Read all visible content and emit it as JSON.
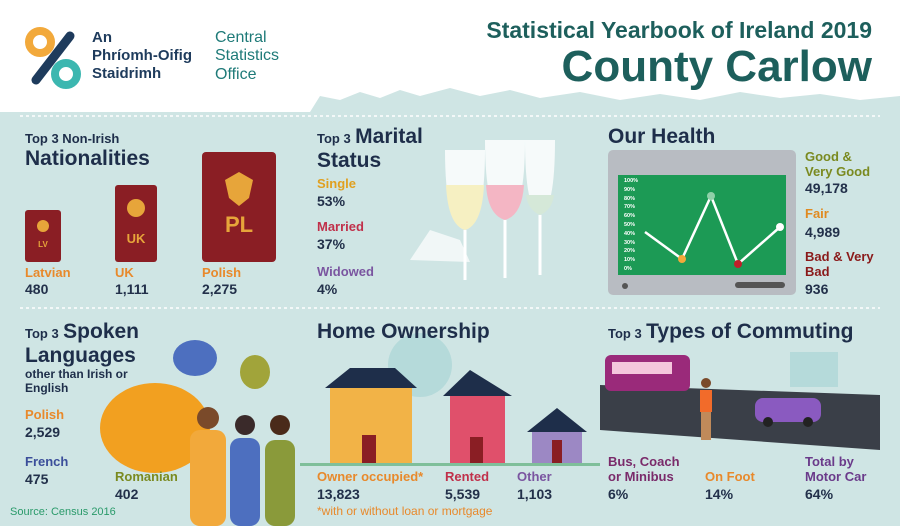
{
  "header": {
    "logo_irish": [
      "An",
      "Phríomh-Oifig",
      "Staidrimh"
    ],
    "logo_english": [
      "Central",
      "Statistics",
      "Office"
    ],
    "title": "Statistical Yearbook of Ireland 2019",
    "subtitle": "County Carlow"
  },
  "nationalities": {
    "kicker": "Top 3 Non-Irish",
    "heading": "Nationalities",
    "items": [
      {
        "code": "LV",
        "name": "Latvian",
        "value": "480"
      },
      {
        "code": "UK",
        "name": "UK",
        "value": "1,111"
      },
      {
        "code": "PL",
        "name": "Polish",
        "value": "2,275"
      }
    ]
  },
  "marital": {
    "kicker": "Top 3",
    "heading": "Marital Status",
    "items": [
      {
        "name": "Single",
        "value": "53%"
      },
      {
        "name": "Married",
        "value": "37%"
      },
      {
        "name": "Widowed",
        "value": "4%"
      }
    ]
  },
  "health": {
    "heading": "Our Health",
    "screen_ticks": [
      "100%",
      "90%",
      "80%",
      "70%",
      "60%",
      "50%",
      "40%",
      "30%",
      "20%",
      "10%",
      "0%"
    ],
    "items": [
      {
        "name": "Good & Very Good",
        "value": "49,178"
      },
      {
        "name": "Fair",
        "value": "4,989"
      },
      {
        "name": "Bad & Very Bad",
        "value": "936"
      }
    ]
  },
  "languages": {
    "kicker": "Top 3",
    "heading": "Spoken Languages",
    "note": "other than Irish or English",
    "items": [
      {
        "name": "Polish",
        "value": "2,529"
      },
      {
        "name": "French",
        "value": "475"
      },
      {
        "name": "Romanian",
        "value": "402"
      }
    ]
  },
  "home": {
    "heading": "Home Ownership",
    "items": [
      {
        "name": "Owner occupied*",
        "value": "13,823"
      },
      {
        "name": "Rented",
        "value": "5,539"
      },
      {
        "name": "Other",
        "value": "1,103"
      }
    ],
    "footnote": "*with or without loan or mortgage"
  },
  "commuting": {
    "kicker": "Top 3",
    "heading": "Types of Commuting",
    "items": [
      {
        "name": "Bus, Coach or Minibus",
        "value": "6%"
      },
      {
        "name": "On Foot",
        "value": "14%"
      },
      {
        "name": "Total by Motor Car",
        "value": "64%"
      }
    ]
  },
  "source": "Source: Census 2016"
}
